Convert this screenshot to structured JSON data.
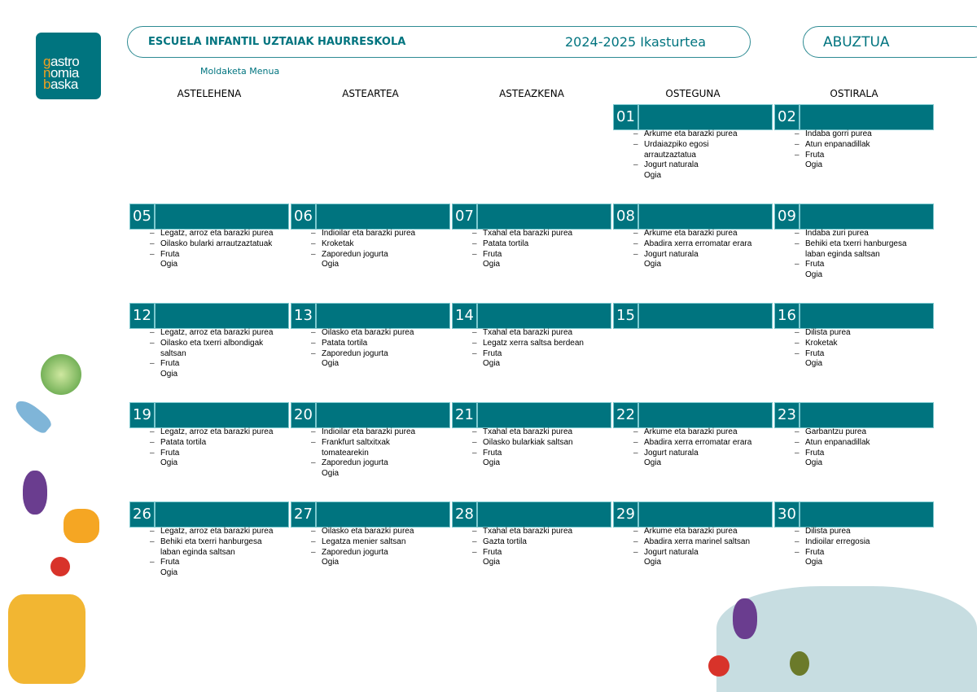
{
  "logo": {
    "text": "gastronomiabaska",
    "line1_first": "g",
    "line1_rest": "astro",
    "line2_first": "n",
    "line2_rest": "omia",
    "line3_first": "b",
    "line3_rest": "aska"
  },
  "header": {
    "school": "ESCUELA INFANTIL UZTAIAK HAURRESKOLA",
    "year": "2024-2025 Ikasturtea",
    "month": "ABUZTUA",
    "subtitle": "Moldaketa Menua"
  },
  "colors": {
    "accent": "#00747f",
    "logo_orange": "#f0a020"
  },
  "weekdays": [
    "ASTELEHENA",
    "ASTEARTEA",
    "ASTEAZKENA",
    "OSTEGUNA",
    "OSTIRALA"
  ],
  "weeks": [
    [
      null,
      null,
      null,
      {
        "day": "01",
        "items": [
          "Arkume eta barazki purea",
          "Urdaiazpiko egosi\narrautzaztatua",
          "Jogurt naturala"
        ],
        "last": "Ogia"
      },
      {
        "day": "02",
        "items": [
          "Indaba gorri purea",
          "Atun enpanadillak",
          "Fruta"
        ],
        "last": "Ogia"
      }
    ],
    [
      {
        "day": "05",
        "items": [
          "Legatz, arroz eta barazki purea",
          "Oilasko bularki arrautzaztatuak",
          "Fruta"
        ],
        "last": "Ogia"
      },
      {
        "day": "06",
        "items": [
          "Indioilar eta barazki purea",
          "Kroketak",
          "Zaporedun jogurta"
        ],
        "last": "Ogia"
      },
      {
        "day": "07",
        "items": [
          "Txahal eta barazki purea",
          "Patata tortila",
          "Fruta"
        ],
        "last": "Ogia"
      },
      {
        "day": "08",
        "items": [
          "Arkume eta barazki purea",
          "Abadira xerra erromatar erara",
          "Jogurt naturala"
        ],
        "last": "Ogia"
      },
      {
        "day": "09",
        "items": [
          "Indaba zuri purea",
          "Behiki eta txerri hanburgesa\nlaban eginda saltsan",
          "Fruta"
        ],
        "last": "Ogia"
      }
    ],
    [
      {
        "day": "12",
        "items": [
          "Legatz, arroz eta barazki purea",
          "Oilasko eta txerri albondigak\nsaltsan",
          "Fruta"
        ],
        "last": "Ogia"
      },
      {
        "day": "13",
        "items": [
          "Oilasko eta barazki purea",
          "Patata tortila",
          "Zaporedun jogurta"
        ],
        "last": "Ogia"
      },
      {
        "day": "14",
        "items": [
          "Txahal eta barazki purea",
          "Legatz xerra saltsa berdean",
          "Fruta"
        ],
        "last": "Ogia"
      },
      {
        "day": "15",
        "items": [],
        "last": null
      },
      {
        "day": "16",
        "items": [
          "Dilista purea",
          "Kroketak",
          "Fruta"
        ],
        "last": "Ogia"
      }
    ],
    [
      {
        "day": "19",
        "items": [
          "Legatz, arroz eta barazki purea",
          "Patata tortila",
          "Fruta"
        ],
        "last": "Ogia"
      },
      {
        "day": "20",
        "items": [
          "Indioilar eta barazki purea",
          "Frankfurt saltxitxak\ntomatearekin",
          "Zaporedun jogurta"
        ],
        "last": "Ogia"
      },
      {
        "day": "21",
        "items": [
          "Txahal eta barazki purea",
          "Oilasko bularkiak saltsan",
          "Fruta"
        ],
        "last": "Ogia"
      },
      {
        "day": "22",
        "items": [
          "Arkume eta barazki purea",
          "Abadira xerra erromatar erara",
          "Jogurt naturala"
        ],
        "last": "Ogia"
      },
      {
        "day": "23",
        "items": [
          "Garbantzu purea",
          "Atun enpanadillak",
          "Fruta"
        ],
        "last": "Ogia"
      }
    ],
    [
      {
        "day": "26",
        "items": [
          "Legatz, arroz eta barazki purea",
          "Behiki eta txerri hanburgesa\nlaban eginda saltsan",
          "Fruta"
        ],
        "last": "Ogia"
      },
      {
        "day": "27",
        "items": [
          "Oilasko eta barazki purea",
          "Legatza menier saltsan",
          "Zaporedun jogurta"
        ],
        "last": "Ogia"
      },
      {
        "day": "28",
        "items": [
          "Txahal eta barazki purea",
          "Gazta tortila",
          "Fruta"
        ],
        "last": "Ogia"
      },
      {
        "day": "29",
        "items": [
          "Arkume eta barazki purea",
          "Abadira xerra marinel saltsan",
          "Jogurt naturala"
        ],
        "last": "Ogia"
      },
      {
        "day": "30",
        "items": [
          "Dilista purea",
          "Indioilar erregosia",
          "Fruta"
        ],
        "last": "Ogia"
      }
    ]
  ],
  "decorations": [
    "cabbage-illustration",
    "fish-illustration",
    "eggplant-illustration",
    "pepper-illustration",
    "tomato-illustration",
    "cooking-pot-illustration",
    "chef-hat-illustration",
    "olives-illustration"
  ]
}
